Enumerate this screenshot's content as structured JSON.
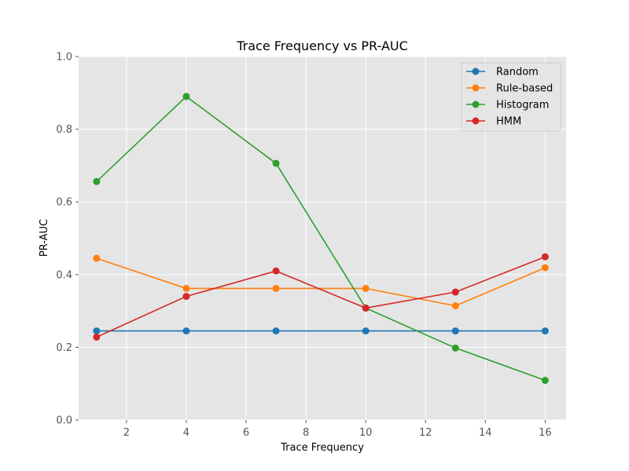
{
  "chart_data": {
    "type": "line",
    "title": "Trace Frequency vs PR-AUC",
    "xlabel": "Trace Frequency",
    "ylabel": "PR-AUC",
    "x": [
      1,
      4,
      7,
      10,
      13,
      16
    ],
    "xlim": [
      0.4,
      16.7
    ],
    "ylim": [
      0.0,
      1.0
    ],
    "xticks": [
      2,
      4,
      6,
      8,
      10,
      12,
      14,
      16
    ],
    "yticks": [
      0.0,
      0.2,
      0.4,
      0.6,
      0.8,
      1.0
    ],
    "xtick_labels": [
      "2",
      "4",
      "6",
      "8",
      "10",
      "12",
      "14",
      "16"
    ],
    "ytick_labels": [
      "0.0",
      "0.2",
      "0.4",
      "0.6",
      "0.8",
      "1.0"
    ],
    "grid": true,
    "legend_position": "top-right",
    "series": [
      {
        "name": "Random",
        "color": "#1f77b4",
        "values": [
          0.245,
          0.245,
          0.245,
          0.245,
          0.245,
          0.245
        ]
      },
      {
        "name": "Rule-based",
        "color": "#ff7f0e",
        "values": [
          0.445,
          0.362,
          0.362,
          0.362,
          0.314,
          0.419
        ]
      },
      {
        "name": "Histogram",
        "color": "#2ca02c",
        "values": [
          0.656,
          0.89,
          0.706,
          0.308,
          0.198,
          0.109
        ]
      },
      {
        "name": "HMM",
        "color": "#d62728",
        "values": [
          0.228,
          0.34,
          0.41,
          0.308,
          0.352,
          0.449
        ]
      }
    ]
  }
}
